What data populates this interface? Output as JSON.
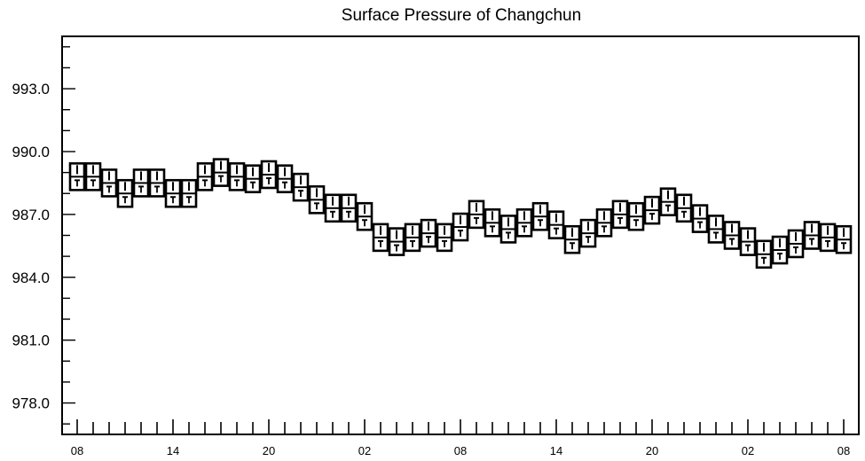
{
  "chart_data": {
    "type": "scatter",
    "title": "Surface Pressure of Changchun",
    "xlabel": "",
    "ylabel": "",
    "ylim": [
      976.5,
      995.5
    ],
    "y_ticks": [
      "993.0",
      "990.0",
      "987.0",
      "984.0",
      "981.0",
      "978.0"
    ],
    "y_tick_values": [
      993.0,
      990.0,
      987.0,
      984.0,
      981.0,
      978.0
    ],
    "x_tick_labels": [
      "08",
      "14",
      "20",
      "02",
      "08",
      "14",
      "20",
      "02",
      "08"
    ],
    "x_tick_hours": [
      0,
      6,
      12,
      18,
      24,
      30,
      36,
      42,
      48
    ],
    "xlim": [
      0,
      48
    ],
    "marker": "station-box glyph (pressure symbol)",
    "grid": false,
    "series": [
      {
        "hours": [
          0,
          1,
          2,
          3,
          4,
          5,
          6,
          7,
          8,
          9,
          10,
          11,
          12,
          13,
          14,
          15,
          16,
          17,
          18,
          19,
          20,
          21,
          22,
          23,
          24,
          25,
          26,
          27,
          28,
          29,
          30,
          31,
          32,
          33,
          34,
          35,
          36,
          37,
          38,
          39,
          40,
          41,
          42,
          43,
          44,
          45,
          46,
          47,
          48
        ],
        "values": [
          988.8,
          988.8,
          988.5,
          988.0,
          988.5,
          988.5,
          988.0,
          988.0,
          988.8,
          989.0,
          988.8,
          988.7,
          988.9,
          988.7,
          988.3,
          987.7,
          987.3,
          987.3,
          986.9,
          985.9,
          985.7,
          985.9,
          986.1,
          985.9,
          986.4,
          987.0,
          986.6,
          986.3,
          986.6,
          986.9,
          986.5,
          985.8,
          986.1,
          986.6,
          987.0,
          986.9,
          987.2,
          987.6,
          987.3,
          986.8,
          986.3,
          986.0,
          985.7,
          985.1,
          985.3,
          985.6,
          986.0,
          985.9,
          985.8
        ]
      }
    ]
  }
}
